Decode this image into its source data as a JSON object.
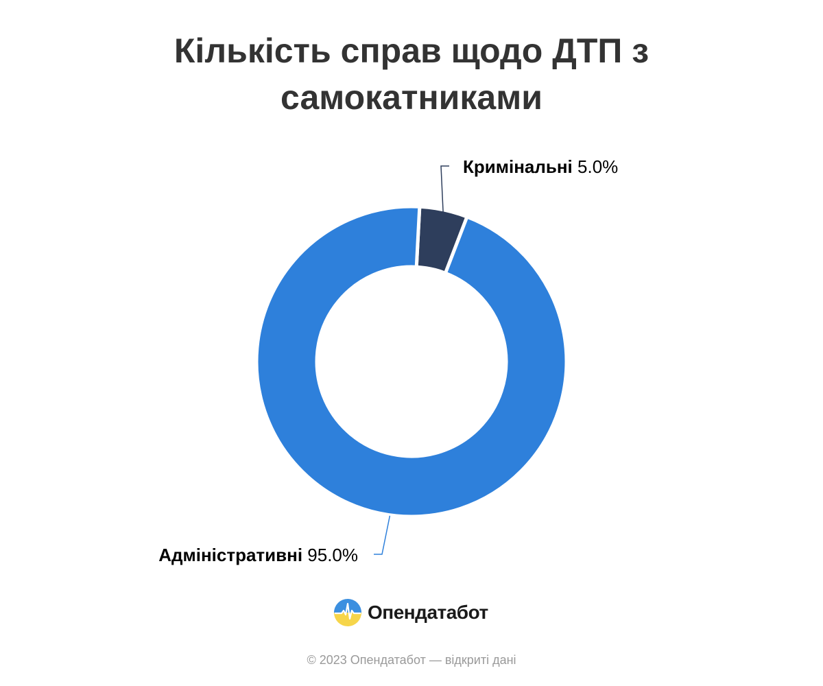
{
  "chart_data": {
    "type": "pie",
    "variant": "donut",
    "title": "Кількість справ щодо ДТП з самокатниками",
    "slices": [
      {
        "label": "Кримінальні",
        "value": 5.0,
        "value_label": "5.0%",
        "color": "#2e3e5c"
      },
      {
        "label": "Адміністративні",
        "value": 95.0,
        "value_label": "95.0%",
        "color": "#2e80db"
      }
    ],
    "legend": "none"
  },
  "branding": {
    "logo_text": "Опендатабот",
    "logo_icon": "opendatabot-logo-icon",
    "footer": "© 2023 Опендатабот — відкриті дані"
  }
}
